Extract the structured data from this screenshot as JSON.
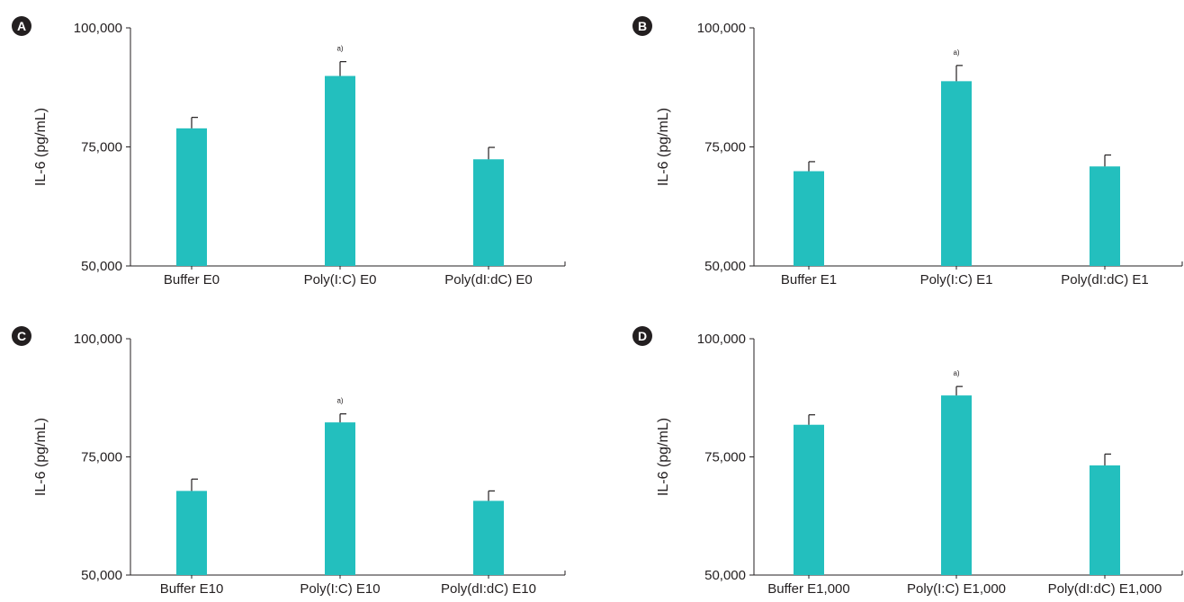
{
  "chart_data": [
    {
      "panel": "A",
      "type": "bar",
      "ylabel": "IL-6 (pg/mL)",
      "yticks": [
        "50,000",
        "75,000",
        "100,000"
      ],
      "ylim": [
        50000,
        100000
      ],
      "categories": [
        "Buffer E0",
        "Poly(I:C) E0",
        "Poly(dI:dC) E0"
      ],
      "values": [
        78900,
        89900,
        72400
      ],
      "errors": [
        2300,
        3000,
        2500
      ],
      "annotations": [
        "",
        "a)",
        ""
      ],
      "color": "#23bfbe"
    },
    {
      "panel": "B",
      "type": "bar",
      "ylabel": "IL-6 (pg/mL)",
      "yticks": [
        "50,000",
        "75,000",
        "100,000"
      ],
      "ylim": [
        50000,
        100000
      ],
      "categories": [
        "Buffer E1",
        "Poly(I:C) E1",
        "Poly(dI:dC) E1"
      ],
      "values": [
        69900,
        88800,
        70900
      ],
      "errors": [
        2000,
        3300,
        2400
      ],
      "annotations": [
        "",
        "a)",
        ""
      ],
      "color": "#23bfbe"
    },
    {
      "panel": "C",
      "type": "bar",
      "ylabel": "IL-6 (pg/mL)",
      "yticks": [
        "50,000",
        "75,000",
        "100,000"
      ],
      "ylim": [
        50000,
        100000
      ],
      "categories": [
        "Buffer E10",
        "Poly(I:C) E10",
        "Poly(dI:dC) E10"
      ],
      "values": [
        67800,
        82300,
        65700
      ],
      "errors": [
        2500,
        1800,
        2100
      ],
      "annotations": [
        "",
        "a)",
        ""
      ],
      "color": "#23bfbe"
    },
    {
      "panel": "D",
      "type": "bar",
      "ylabel": "IL-6 (pg/mL)",
      "yticks": [
        "50,000",
        "75,000",
        "100,000"
      ],
      "ylim": [
        50000,
        100000
      ],
      "categories": [
        "Buffer E1,000",
        "Poly(I:C) E1,000",
        "Poly(dI:dC) E1,000"
      ],
      "values": [
        81800,
        88000,
        73200
      ],
      "errors": [
        2100,
        1900,
        2400
      ],
      "annotations": [
        "",
        "a)",
        ""
      ],
      "color": "#23bfbe"
    }
  ]
}
